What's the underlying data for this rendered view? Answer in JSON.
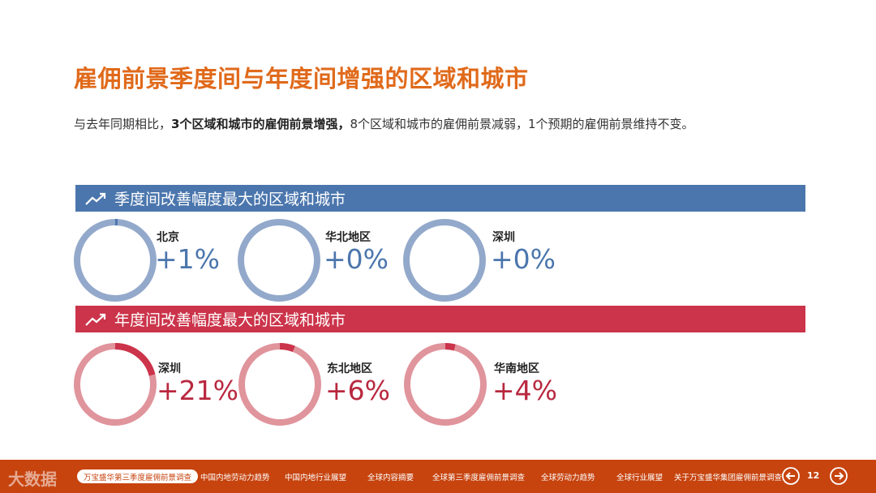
{
  "title": "雇佣前景季度间与年度间增强的区域和城市",
  "subtitle": {
    "part1": "与去年同期相比，",
    "bold": "3个区域和城市的雇佣前景增强，",
    "part2": "8个区域和城市的雇佣前景减弱，1个预期的雇佣前景维持不变。"
  },
  "quarterly": {
    "heading": "季度间改善幅度最大的区域和城市",
    "icon": "trend-up-icon",
    "color": "#4b76ad",
    "ring_color": "#93a9cb",
    "items": [
      {
        "city": "北京",
        "value": "+1%",
        "pct": 1
      },
      {
        "city": "华北地区",
        "value": "+0%",
        "pct": 0
      },
      {
        "city": "深圳",
        "value": "+0%",
        "pct": 0
      }
    ]
  },
  "yearly": {
    "heading": "年度间改善幅度最大的区域和城市",
    "icon": "trend-up-icon",
    "color": "#cb344a",
    "ring_color": "#e0949c",
    "items": [
      {
        "city": "深圳",
        "value": "+21%",
        "pct": 21
      },
      {
        "city": "东北地区",
        "value": "+6%",
        "pct": 6
      },
      {
        "city": "华南地区",
        "value": "+4%",
        "pct": 4
      }
    ]
  },
  "footer": {
    "brand": "大数据",
    "active": "万宝盛华第三季度雇佣前景调查",
    "tabs": [
      "中国内地劳动力趋势",
      "中国内地行业展望",
      "全球内容摘要",
      "全球第三季度雇佣前景调查",
      "全球劳动力趋势",
      "全球行业展望",
      "关于万宝盛华集团雇佣前景调查"
    ],
    "page": "12",
    "prev_icon": "arrow-left-icon",
    "next_icon": "arrow-right-icon"
  }
}
